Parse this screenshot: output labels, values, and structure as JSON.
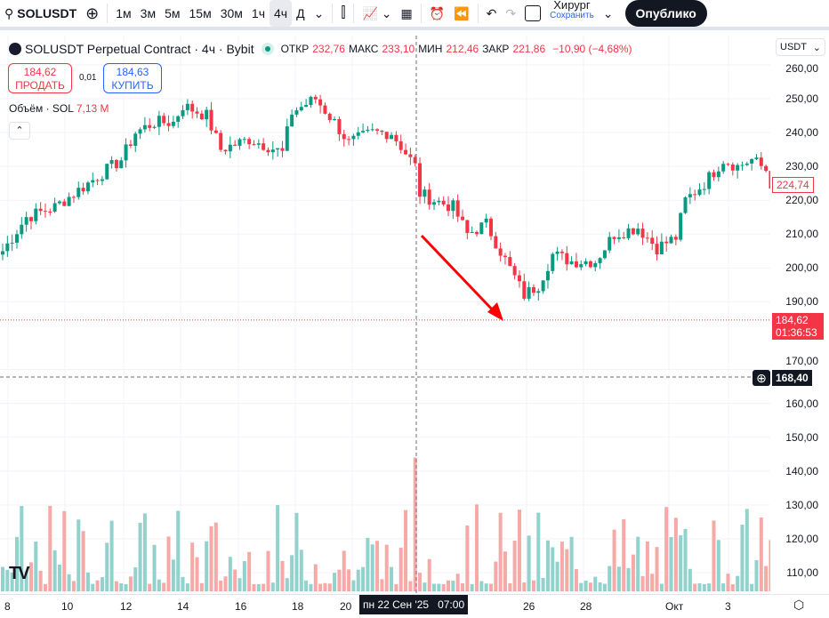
{
  "toolbar": {
    "symbol": "SOLUSDT",
    "intervals": [
      "1м",
      "3м",
      "5м",
      "15м",
      "30м",
      "1ч",
      "4ч",
      "Д"
    ],
    "active_interval": "4ч",
    "layout_name": "Хирург",
    "save_label": "Сохранить",
    "publish_label": "Опублико"
  },
  "legend": {
    "title": "SOLUSDT Perpetual Contract · 4ч · Bybit",
    "open_label": "ОТКР",
    "open": "232,76",
    "high_label": "МАКС",
    "high": "233,10",
    "low_label": "МИН",
    "low": "212,46",
    "close_label": "ЗАКР",
    "close": "221,86",
    "change": "−10,90 (−4,68%)"
  },
  "trade": {
    "sell_price": "184,62",
    "sell_label": "ПРОДАТЬ",
    "spread": "0,01",
    "buy_price": "184,63",
    "buy_label": "КУПИТЬ"
  },
  "volume": {
    "label": "Объём · SOL",
    "value": "7,13 M"
  },
  "currency": "USDT",
  "price_axis": [
    "260,00",
    "250,00",
    "240,00",
    "230,00",
    "220,00",
    "210,00",
    "200,00",
    "190,00",
    "170,00",
    "160,00",
    "150,00",
    "140,00",
    "130,00",
    "120,00",
    "110,00"
  ],
  "last_bar_price": "224,74",
  "current_price": "184,62",
  "countdown": "01:36:53",
  "crosshair_price": "168,40",
  "time_axis": [
    "8",
    "10",
    "12",
    "14",
    "16",
    "18",
    "20",
    "26",
    "28",
    "Окт",
    "3"
  ],
  "crosshair_time": "пн 22 Сен '25   07:00",
  "colors": {
    "up": "#089981",
    "down": "#f23645",
    "vol_up": "#92d2cc",
    "vol_down": "#f7a9a7"
  },
  "price_path": [
    [
      0,
      205
    ],
    [
      5,
      215
    ],
    [
      11,
      218
    ],
    [
      18,
      225
    ],
    [
      25,
      232
    ],
    [
      28,
      240
    ],
    [
      32,
      243
    ],
    [
      36,
      243
    ],
    [
      38,
      248
    ],
    [
      43,
      245
    ],
    [
      46,
      235
    ],
    [
      52,
      238
    ],
    [
      56,
      236
    ],
    [
      59,
      234
    ],
    [
      61,
      246
    ],
    [
      66,
      250
    ],
    [
      70,
      243
    ],
    [
      73,
      237
    ],
    [
      78,
      240
    ],
    [
      82,
      240
    ],
    [
      87,
      230
    ],
    [
      88,
      222
    ],
    [
      91,
      220
    ],
    [
      95,
      218
    ],
    [
      98,
      210
    ],
    [
      102,
      213
    ],
    [
      105,
      205
    ],
    [
      110,
      192
    ],
    [
      113,
      195
    ],
    [
      116,
      204
    ],
    [
      120,
      202
    ],
    [
      125,
      202
    ],
    [
      129,
      210
    ],
    [
      134,
      212
    ],
    [
      138,
      206
    ],
    [
      142,
      209
    ],
    [
      144,
      220
    ],
    [
      148,
      225
    ],
    [
      152,
      232
    ],
    [
      155,
      230
    ],
    [
      158,
      232
    ],
    [
      161,
      229
    ],
    [
      162,
      225
    ]
  ]
}
